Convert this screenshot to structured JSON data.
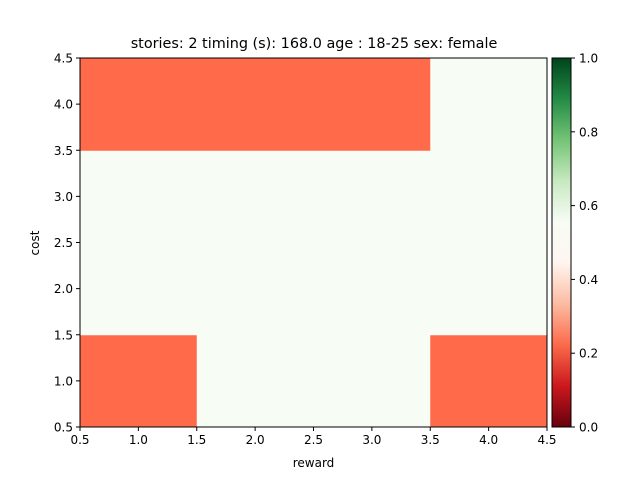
{
  "chart_data": {
    "type": "heatmap",
    "title": "stories: 2 timing (s): 168.0 age : 18-25 sex: female",
    "xlabel": "reward",
    "ylabel": "cost",
    "xlim": [
      0.5,
      4.5
    ],
    "ylim": [
      0.5,
      4.5
    ],
    "x_ticks": [
      "0.5",
      "1.0",
      "1.5",
      "2.0",
      "2.5",
      "3.0",
      "3.5",
      "4.0",
      "4.5"
    ],
    "y_ticks": [
      "0.5",
      "1.0",
      "1.5",
      "2.0",
      "2.5",
      "3.0",
      "3.5",
      "4.0",
      "4.5"
    ],
    "x": [
      1,
      2,
      3,
      4
    ],
    "y": [
      1,
      2,
      3,
      4
    ],
    "z": [
      [
        0.25,
        0.5,
        0.5,
        0.25
      ],
      [
        0.5,
        0.5,
        0.5,
        0.5
      ],
      [
        0.5,
        0.5,
        0.5,
        0.5
      ],
      [
        0.25,
        0.25,
        0.25,
        0.5
      ]
    ],
    "colorbar": {
      "colormap": "RdYlGn-like (red to white to green)",
      "range": [
        0.0,
        1.0
      ],
      "ticks": [
        "0.0",
        "0.2",
        "0.4",
        "0.6",
        "0.8",
        "1.0"
      ],
      "stops": [
        "#67000d",
        "#cb181d",
        "#fb6a4a",
        "#fcbba1",
        "#fff5f0",
        "#f7fcf5",
        "#c7e9c0",
        "#74c476",
        "#238b45",
        "#00441b"
      ]
    },
    "cell_colors": {
      "low": "#fe6a4a",
      "mid": "#f7fcf4"
    },
    "grid": false,
    "legend": "none"
  }
}
